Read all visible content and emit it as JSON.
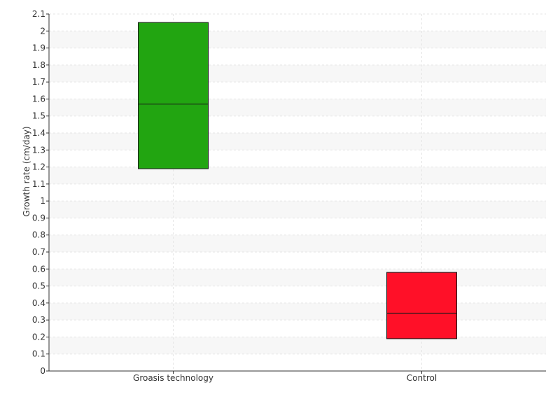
{
  "chart_data": {
    "type": "box",
    "ylabel": "Growth rate (cm/day)",
    "xlabel": "",
    "ylim": [
      0,
      2.1
    ],
    "y_ticks": [
      0,
      0.1,
      0.2,
      0.3,
      0.4,
      0.5,
      0.6,
      0.7,
      0.8,
      0.9,
      1,
      1.1,
      1.2,
      1.3,
      1.4,
      1.5,
      1.6,
      1.7,
      1.8,
      1.9,
      2,
      2.1
    ],
    "categories": [
      "Groasis technology",
      "Control"
    ],
    "boxes": [
      {
        "category": "Groasis technology",
        "q1": 1.19,
        "median": 1.57,
        "q3": 2.05,
        "color": "#22a511"
      },
      {
        "category": "Control",
        "q1": 0.19,
        "median": 0.34,
        "q3": 0.58,
        "color": "#ff1028"
      }
    ],
    "grid": true,
    "legend": "none"
  }
}
